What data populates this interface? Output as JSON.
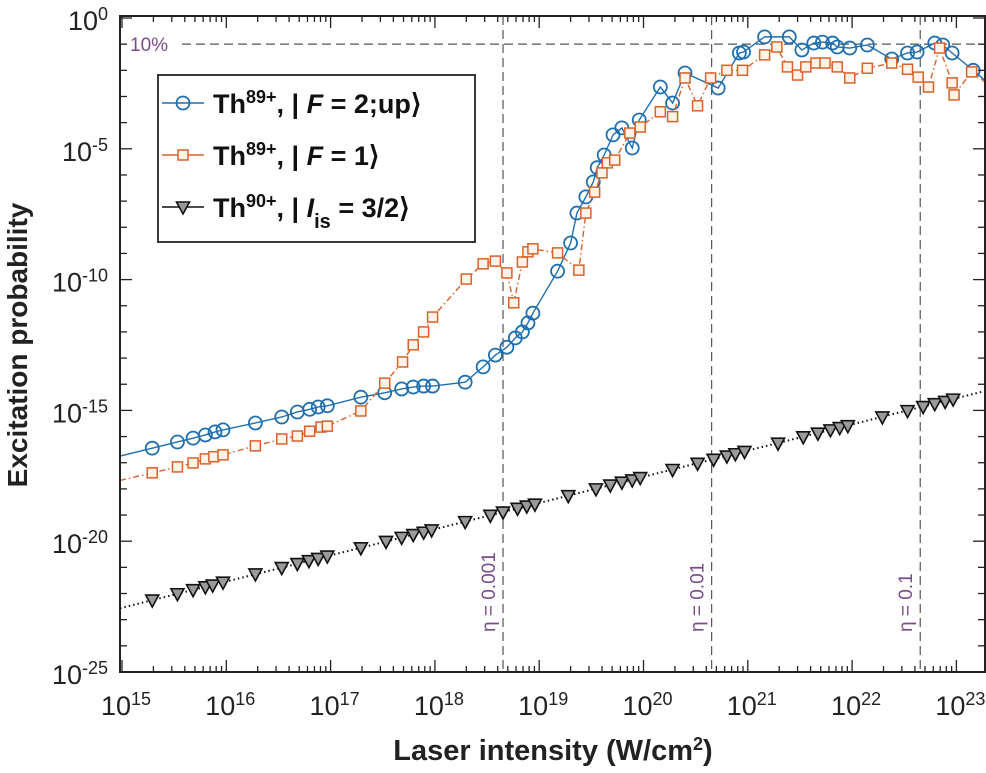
{
  "chart_data": {
    "type": "scatter",
    "title": "",
    "xlabel": "Laser intensity (W/cm²)",
    "xlabel_parts": {
      "main": "Laser intensity (W/cm",
      "sup": "2",
      "end": ")"
    },
    "ylabel": "Excitation probability",
    "xscale": "log",
    "yscale": "log",
    "xlim": [
      1000000000000000.0,
      1.9e+23
    ],
    "ylim": [
      1e-25,
      1
    ],
    "grid": false,
    "legend_placement": "top-left",
    "x_ticks": [
      {
        "value": 1000000000000000.0,
        "base": "10",
        "exp": "15"
      },
      {
        "value": 1e+16,
        "base": "10",
        "exp": "16"
      },
      {
        "value": 1e+17,
        "base": "10",
        "exp": "17"
      },
      {
        "value": 1e+18,
        "base": "10",
        "exp": "18"
      },
      {
        "value": 1e+19,
        "base": "10",
        "exp": "19"
      },
      {
        "value": 1e+20,
        "base": "10",
        "exp": "20"
      },
      {
        "value": 1e+21,
        "base": "10",
        "exp": "21"
      },
      {
        "value": 1e+22,
        "base": "10",
        "exp": "22"
      },
      {
        "value": 1e+23,
        "base": "10",
        "exp": "23"
      }
    ],
    "y_ticks": [
      {
        "value": 1,
        "base": "10",
        "exp": "0"
      },
      {
        "value": 1e-05,
        "base": "10",
        "exp": "-5"
      },
      {
        "value": 1e-10,
        "base": "10",
        "exp": "-10"
      },
      {
        "value": 1e-15,
        "base": "10",
        "exp": "-15"
      },
      {
        "value": 1e-20,
        "base": "10",
        "exp": "-20"
      },
      {
        "value": 1e-25,
        "base": "10",
        "exp": "-25"
      }
    ],
    "reference_lines": {
      "horizontal": {
        "value": 0.1,
        "label": "10%"
      },
      "vertical": [
        {
          "value": 4.5e+18,
          "label": "η = 0.001"
        },
        {
          "value": 4.5e+20,
          "label": "η = 0.01"
        },
        {
          "value": 4.5e+22,
          "label": "η = 0.1"
        }
      ],
      "color": "#7a4d8a"
    },
    "series": [
      {
        "name": "Th89+, |F = 2;up⟩",
        "legend": [
          {
            "t": "Th",
            "s": "normal"
          },
          {
            "t": "89+",
            "s": "sup"
          },
          {
            "t": ", | ",
            "s": "normal"
          },
          {
            "t": "F",
            "s": "italic"
          },
          {
            "t": " = 2;up⟩",
            "s": "normal"
          }
        ],
        "marker": "circle",
        "line": "solid",
        "color": "#1f6fb0",
        "x": [
          1950000000000000.0,
          3400000000000000.0,
          4800000000000000.0,
          6300000000000000.0,
          7800000000000000.0,
          9300000000000000.0,
          1.9e+16,
          3.4e+16,
          4.8e+16,
          6.3e+16,
          7.6e+16,
          9.3e+16,
          1.95e+17,
          3.3e+17,
          4.8e+17,
          6.2e+17,
          7.8e+17,
          9.5e+17,
          1.95e+18,
          2.9e+18,
          3.8e+18,
          4.9e+18,
          5.9e+18,
          6.9e+18,
          7.8e+18,
          8.7e+18,
          1.5e+19,
          2e+19,
          2.3e+19,
          2.8e+19,
          3.3e+19,
          3.6e+19,
          4.2e+19,
          5.1e+19,
          6.2e+19,
          7.8e+19,
          9.1e+19,
          1.45e+20,
          1.9e+20,
          2.5e+20,
          5.2e+20,
          8.3e+20,
          9.1e+20,
          1.45e+21,
          2.5e+21,
          3.3e+21,
          4.3e+21,
          5.2e+21,
          6.5e+21,
          7.2e+21,
          9.5e+21,
          1.4e+22,
          2.4e+22,
          3.4e+22,
          4.2e+22,
          6.2e+22,
          7.4e+22,
          9.1e+22,
          1.45e+23
        ],
        "y": [
          3.6e-17,
          6.2e-17,
          8.7e-17,
          1.15e-16,
          1.5e-16,
          1.8e-16,
          3.3e-16,
          5.6e-16,
          8.7e-16,
          1.1e-15,
          1.35e-15,
          1.5e-15,
          3.2e-15,
          4.7e-15,
          6.6e-15,
          7.8e-15,
          8.5e-15,
          8.5e-15,
          1.2e-14,
          4.6e-14,
          1.3e-13,
          2.6e-13,
          5.9e-13,
          1e-12,
          2.2e-12,
          5.2e-12,
          2.1e-10,
          2.5e-09,
          3.5e-08,
          1.45e-07,
          5.4e-07,
          1.9e-06,
          5.8e-06,
          3.4e-05,
          6.3e-05,
          1.07e-05,
          0.000126,
          0.0023,
          0.00056,
          0.0079,
          0.0021,
          0.046,
          0.05,
          0.19,
          0.19,
          0.06,
          0.11,
          0.12,
          0.11,
          0.078,
          0.071,
          0.093,
          0.027,
          0.046,
          0.05,
          0.11,
          0.093,
          0.046,
          0.01
        ]
      },
      {
        "name": "Th89+, |F = 1⟩",
        "legend": [
          {
            "t": "Th",
            "s": "normal"
          },
          {
            "t": "89+",
            "s": "sup"
          },
          {
            "t": ", | ",
            "s": "normal"
          },
          {
            "t": "F",
            "s": "italic"
          },
          {
            "t": " = 1⟩",
            "s": "normal"
          }
        ],
        "marker": "square",
        "line": "dashdot",
        "color": "#d8622a",
        "x": [
          1950000000000000.0,
          3400000000000000.0,
          4800000000000000.0,
          6300000000000000.0,
          7600000000000000.0,
          9300000000000000.0,
          1.9e+16,
          3.4e+16,
          4.8e+16,
          6.3e+16,
          8.1e+16,
          9.3e+16,
          1.95e+17,
          3.3e+17,
          4.9e+17,
          6.2e+17,
          7.8e+17,
          9.5e+17,
          2e+18,
          2.9e+18,
          3.8e+18,
          4.9e+18,
          5.7e+18,
          6.9e+18,
          7.8e+18,
          8.7e+18,
          1.5e+19,
          2.4e+19,
          2.8e+19,
          3.4e+19,
          4e+19,
          4.5e+19,
          5.3e+19,
          7.4e+19,
          9.3e+19,
          1.45e+20,
          1.9e+20,
          2.5e+20,
          3.3e+20,
          4.4e+20,
          6.3e+20,
          8.9e+20,
          1.45e+21,
          1.9e+21,
          2.4e+21,
          3e+21,
          3.6e+21,
          4.5e+21,
          5.5e+21,
          7.2e+21,
          9.5e+21,
          1.4e+22,
          2.4e+22,
          3.4e+22,
          4.3e+22,
          5.4e+22,
          6.9e+22,
          9.1e+22,
          9.5e+22,
          1.4e+23
        ],
        "y": [
          4.1e-18,
          6.9e-18,
          9.8e-18,
          1.4e-17,
          1.7e-17,
          2e-17,
          4.4e-17,
          8.1e-17,
          1.05e-16,
          1.6e-16,
          2.3e-16,
          2.5e-16,
          9.5e-16,
          1.1e-14,
          7.1e-14,
          3.2e-13,
          1e-12,
          3.7e-12,
          1.05e-10,
          4e-10,
          5.1e-10,
          1.8e-10,
          1.3e-11,
          4.7e-10,
          1.15e-09,
          1.5e-09,
          1.05e-09,
          2.3e-10,
          3.5e-08,
          2.2e-07,
          1.2e-06,
          2.9e-06,
          3.7e-06,
          4e-05,
          6.8e-05,
          0.00026,
          0.00017,
          0.0051,
          0.00044,
          0.0051,
          0.01,
          0.01,
          0.039,
          0.078,
          0.0135,
          0.0066,
          0.0135,
          0.019,
          0.019,
          0.0135,
          0.0051,
          0.012,
          0.019,
          0.011,
          0.0055,
          0.0023,
          0.071,
          0.0033,
          0.00115,
          0.0087
        ]
      },
      {
        "name": "Th90+, |Iis = 3/2⟩",
        "legend": [
          {
            "t": "Th",
            "s": "normal"
          },
          {
            "t": "90+",
            "s": "sup"
          },
          {
            "t": ", | ",
            "s": "normal"
          },
          {
            "t": "I",
            "s": "italic"
          },
          {
            "t": "is",
            "s": "sub"
          },
          {
            "t": " = 3/2⟩",
            "s": "normal"
          }
        ],
        "marker": "triangle-down",
        "line": "dotted",
        "color": "#111111",
        "fill": "#9a9a9a",
        "x": [
          1950000000000000.0,
          3400000000000000.0,
          4800000000000000.0,
          6300000000000000.0,
          7400000000000000.0,
          9300000000000000.0,
          1.9e+16,
          3.4e+16,
          4.8e+16,
          6.2e+16,
          7.6e+16,
          9.3e+16,
          1.95e+17,
          3.4e+17,
          4.8e+17,
          6.2e+17,
          7.8e+17,
          9.3e+17,
          1.95e+18,
          3.4e+18,
          4.5e+18,
          6.2e+18,
          7.6e+18,
          9.1e+18,
          1.9e+19,
          3.5e+19,
          4.8e+19,
          6.2e+19,
          7.8e+19,
          9.3e+19,
          1.9e+20,
          3.3e+20,
          4.7e+20,
          6.3e+20,
          7.6e+20,
          9.3e+20,
          1.95e+21,
          3.4e+21,
          4.7e+21,
          6.2e+21,
          7.6e+21,
          9.1e+21,
          1.95e+22,
          3.4e+22,
          4.8e+22,
          6.2e+22,
          7.8e+22,
          9.3e+22
        ],
        "y": [
          5.6e-23,
          9.8e-23,
          1.4e-22,
          1.8e-22,
          2.1e-22,
          2.7e-22,
          5.6e-22,
          9.8e-22,
          1.4e-21,
          1.8e-21,
          2.2e-21,
          2.7e-21,
          5.6e-21,
          9.8e-21,
          1.4e-20,
          1.8e-20,
          2.2e-20,
          2.7e-20,
          5.6e-20,
          9.8e-20,
          1.3e-19,
          1.8e-19,
          2.2e-19,
          2.6e-19,
          5.5e-19,
          1e-18,
          1.4e-18,
          1.8e-18,
          2.2e-18,
          2.7e-18,
          5.5e-18,
          9.5e-18,
          1.35e-17,
          1.8e-17,
          2.2e-17,
          2.7e-17,
          5.6e-17,
          9.8e-17,
          1.35e-16,
          1.8e-16,
          2.2e-16,
          2.6e-16,
          5.6e-16,
          9.8e-16,
          1.4e-15,
          1.8e-15,
          2.2e-15,
          2.7e-15
        ]
      }
    ]
  }
}
